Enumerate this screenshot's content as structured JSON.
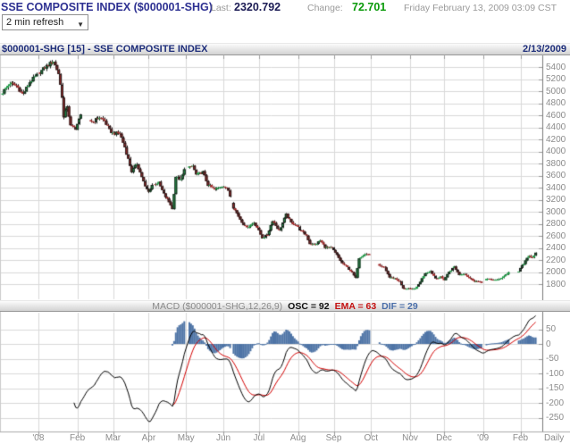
{
  "header": {
    "title": "SSE COMPOSITE INDEX ($000001-SHG)",
    "last_label": "Last:",
    "last_value": "2320.792",
    "change_label": "Change:",
    "change_value": "72.701",
    "datetime": "Friday February 13, 2009 03:09 CST",
    "refresh_value": "2 min refresh"
  },
  "chart_bar": {
    "title": "$000001-SHG [15] - SSE COMPOSITE INDEX",
    "date": "2/13/2009"
  },
  "macd_bar": {
    "params_label": "MACD ($000001-SHG,12,26,9)",
    "osc_label": "OSC = 92",
    "ema_label": "EMA = 63",
    "dif_label": "DIF = 29"
  },
  "colors": {
    "up_candle": "#1fa14a",
    "down_candle": "#a82a2a",
    "candle_border": "#1a1a1a",
    "histogram": "#4e74a6",
    "osc_line": "#000000",
    "ema_line": "#d40000",
    "grid": "#d9d9d9",
    "axis_text": "#8c8c8c",
    "separator": "#7a7a7a",
    "positive_green": "#0a9a0a",
    "title_navy": "#1d2d7a"
  },
  "chart_data": [
    {
      "type": "candlestick",
      "title": "$000001-SHG [15] - SSE COMPOSITE INDEX",
      "symbol": "$000001-SHG",
      "period": "Daily",
      "last_close": 2320.792,
      "yticks": [
        5400,
        5200,
        5000,
        4800,
        4600,
        4400,
        4200,
        4000,
        3800,
        3600,
        3400,
        3200,
        3000,
        2800,
        2600,
        2400,
        2200,
        2000,
        1800
      ],
      "ylim": [
        1550,
        5590
      ],
      "n_slots": 315,
      "months": [
        {
          "label": "'08",
          "i": 21
        },
        {
          "label": "Feb",
          "i": 44
        },
        {
          "label": "Mar",
          "i": 65
        },
        {
          "label": "Apr",
          "i": 86
        },
        {
          "label": "May",
          "i": 108
        },
        {
          "label": "Jun",
          "i": 130
        },
        {
          "label": "Jul",
          "i": 151
        },
        {
          "label": "Aug",
          "i": 174
        },
        {
          "label": "Sep",
          "i": 195
        },
        {
          "label": "Oct",
          "i": 217
        },
        {
          "label": "Nov",
          "i": 240
        },
        {
          "label": "Dec",
          "i": 260
        },
        {
          "label": "'09",
          "i": 283
        },
        {
          "label": "Feb",
          "i": 305
        }
      ],
      "gap_slots": [
        21,
        47,
        48,
        49,
        50,
        51,
        89,
        108,
        109,
        135,
        217,
        218,
        219,
        220,
        221,
        283,
        284,
        299,
        300,
        301,
        302,
        303
      ],
      "keyframes": [
        [
          0,
          4980
        ],
        [
          4,
          5130
        ],
        [
          8,
          5090
        ],
        [
          12,
          4950
        ],
        [
          16,
          5150
        ],
        [
          20,
          5262
        ],
        [
          25,
          5393
        ],
        [
          30,
          5497
        ],
        [
          33,
          5290
        ],
        [
          35,
          4914
        ],
        [
          36,
          4559
        ],
        [
          38,
          4761
        ],
        [
          40,
          4419
        ],
        [
          43,
          4383
        ],
        [
          46,
          4600
        ],
        [
          53,
          4490
        ],
        [
          57,
          4567
        ],
        [
          60,
          4505
        ],
        [
          63,
          4348
        ],
        [
          65,
          4300
        ],
        [
          69,
          4300
        ],
        [
          72,
          4070
        ],
        [
          76,
          3668
        ],
        [
          79,
          3796
        ],
        [
          82,
          3580
        ],
        [
          84,
          3411
        ],
        [
          86,
          3329
        ],
        [
          88,
          3446
        ],
        [
          92,
          3480
        ],
        [
          95,
          3291
        ],
        [
          99,
          3116
        ],
        [
          100,
          3040
        ],
        [
          102,
          3584
        ],
        [
          105,
          3523
        ],
        [
          107,
          3693
        ],
        [
          112,
          3761
        ],
        [
          114,
          3613
        ],
        [
          118,
          3657
        ],
        [
          121,
          3443
        ],
        [
          125,
          3364
        ],
        [
          128,
          3415
        ],
        [
          130,
          3433
        ],
        [
          133,
          3353
        ],
        [
          136,
          3072
        ],
        [
          140,
          2874
        ],
        [
          143,
          2748
        ],
        [
          145,
          2760
        ],
        [
          148,
          2821
        ],
        [
          150,
          2736
        ],
        [
          153,
          2566
        ],
        [
          156,
          2620
        ],
        [
          159,
          2856
        ],
        [
          163,
          2684
        ],
        [
          167,
          2952
        ],
        [
          170,
          2818
        ],
        [
          173,
          2776
        ],
        [
          175,
          2703
        ],
        [
          179,
          2605
        ],
        [
          181,
          2470
        ],
        [
          184,
          2450
        ],
        [
          187,
          2523
        ],
        [
          190,
          2413
        ],
        [
          194,
          2397
        ],
        [
          197,
          2277
        ],
        [
          200,
          2143
        ],
        [
          203,
          2078
        ],
        [
          206,
          1986
        ],
        [
          208,
          1896
        ],
        [
          209,
          2075
        ],
        [
          210,
          2236
        ],
        [
          213,
          2297
        ],
        [
          216,
          2294
        ],
        [
          222,
          2092
        ],
        [
          225,
          2074
        ],
        [
          228,
          1910
        ],
        [
          231,
          1895
        ],
        [
          234,
          1839
        ],
        [
          236,
          1723
        ],
        [
          239,
          1729
        ],
        [
          241,
          1706
        ],
        [
          244,
          1748
        ],
        [
          246,
          1844
        ],
        [
          249,
          1986
        ],
        [
          252,
          2017
        ],
        [
          255,
          1897
        ],
        [
          258,
          1917
        ],
        [
          260,
          1872
        ],
        [
          263,
          2006
        ],
        [
          266,
          2089
        ],
        [
          269,
          1954
        ],
        [
          272,
          1976
        ],
        [
          275,
          1897
        ],
        [
          278,
          1851
        ],
        [
          280,
          1843
        ],
        [
          282,
          1821
        ],
        [
          285,
          1881
        ],
        [
          288,
          1878
        ],
        [
          291,
          1864
        ],
        [
          294,
          1909
        ],
        [
          298,
          1991
        ],
        [
          304,
          2011
        ],
        [
          306,
          2108
        ],
        [
          308,
          2181
        ],
        [
          310,
          2265
        ],
        [
          312,
          2249
        ],
        [
          314,
          2320.792
        ]
      ]
    },
    {
      "type": "macd",
      "params": [
        12,
        26,
        9
      ],
      "osc": 92,
      "ema": 63,
      "dif": 29,
      "yticks": [
        50,
        0,
        -50,
        -100,
        -150,
        -200,
        -250
      ],
      "line_start": 42,
      "signal_start": 100
    }
  ]
}
